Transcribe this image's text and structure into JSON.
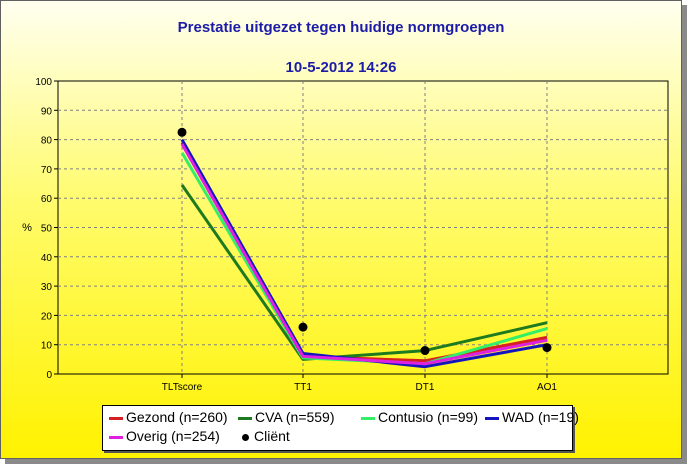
{
  "title": "Prestatie uitgezet tegen huidige normgroepen",
  "subtitle": "10-5-2012   14:26",
  "chart_data": {
    "type": "line",
    "categories": [
      "TLTscore",
      "TT1",
      "DT1",
      "AO1"
    ],
    "ylabel": "%",
    "ylim": [
      0,
      100
    ],
    "yticks": [
      0,
      10,
      20,
      30,
      40,
      50,
      60,
      70,
      80,
      90,
      100
    ],
    "grid": true,
    "series": [
      {
        "name": "Gezond (n=260)",
        "color": "#d42020",
        "values": [
          79,
          6,
          4.5,
          12.5
        ]
      },
      {
        "name": "CVA (n=559)",
        "color": "#1e7a1e",
        "values": [
          64.5,
          5,
          8,
          17.5
        ]
      },
      {
        "name": "Contusio (n=99)",
        "color": "#33ee66",
        "values": [
          75.5,
          5.5,
          3.5,
          15.5
        ]
      },
      {
        "name": "WAD (n=19)",
        "color": "#1515c0",
        "values": [
          80,
          7,
          2.5,
          10
        ]
      },
      {
        "name": "Overig (n=254)",
        "color": "#e020e0",
        "values": [
          78.5,
          6,
          3.5,
          11.5
        ]
      }
    ],
    "client": {
      "name": "Cliënt",
      "color": "#000000",
      "values": [
        82.5,
        16,
        8,
        9
      ]
    },
    "legend_position": "bottom"
  }
}
